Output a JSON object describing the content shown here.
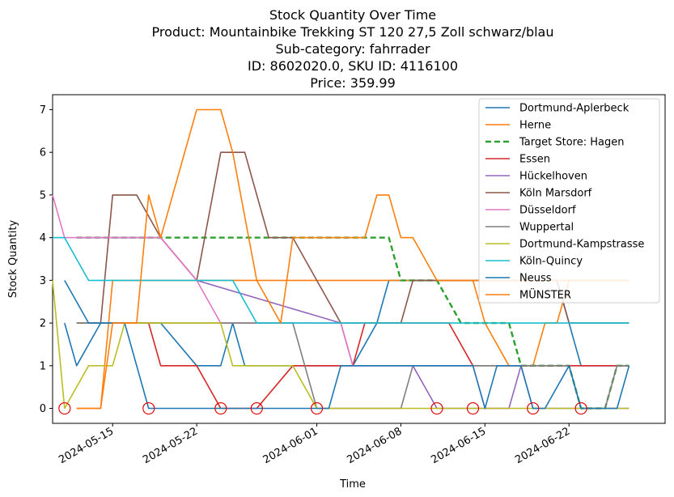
{
  "chart_data": {
    "type": "line",
    "title_lines": [
      "Stock Quantity Over Time",
      "Product: Mountainbike Trekking ST 120 27,5 Zoll schwarz/blau",
      "Sub-category: fahrrader",
      "ID: 8602020.0, SKU ID: 4116100",
      "Price: 359.99"
    ],
    "xlabel": "Time",
    "ylabel": "Stock Quantity",
    "xlim": [
      "2024-05-10",
      "2024-06-30"
    ],
    "ylim": [
      -0.35,
      7.35
    ],
    "x_ticks": [
      "2024-05-15",
      "2024-05-22",
      "2024-06-01",
      "2024-06-08",
      "2024-06-15",
      "2024-06-22"
    ],
    "y_ticks": [
      0,
      1,
      2,
      3,
      4,
      5,
      6,
      7
    ],
    "grid": false,
    "legend_position": "top-right",
    "series": [
      {
        "name": "Dortmund-Aplerbeck",
        "color": "#1f77b4",
        "dashed": false,
        "points": [
          [
            "2024-05-11",
            2
          ],
          [
            "2024-05-12",
            1
          ],
          [
            "2024-05-14",
            2
          ],
          [
            "2024-05-17",
            2
          ],
          [
            "2024-05-19",
            2
          ],
          [
            "2024-05-22",
            1
          ],
          [
            "2024-05-24",
            1
          ],
          [
            "2024-05-25",
            2
          ],
          [
            "2024-05-26",
            1
          ],
          [
            "2024-06-01",
            1
          ],
          [
            "2024-06-04",
            1
          ],
          [
            "2024-06-06",
            2
          ],
          [
            "2024-06-07",
            3
          ],
          [
            "2024-06-10",
            3
          ],
          [
            "2024-06-11",
            3
          ],
          [
            "2024-06-15",
            3
          ],
          [
            "2024-06-17",
            3
          ],
          [
            "2024-06-20",
            3
          ],
          [
            "2024-06-21",
            3
          ],
          [
            "2024-06-22",
            2
          ],
          [
            "2024-06-23",
            1
          ],
          [
            "2024-06-27",
            1
          ]
        ]
      },
      {
        "name": "Herne",
        "color": "#ff7f0e",
        "dashed": false,
        "points": [
          [
            "2024-05-12",
            0
          ],
          [
            "2024-05-14",
            0
          ],
          [
            "2024-05-15",
            3
          ],
          [
            "2024-05-22",
            3
          ],
          [
            "2024-06-01",
            3
          ],
          [
            "2024-06-08",
            3
          ],
          [
            "2024-06-14",
            3
          ],
          [
            "2024-06-15",
            2
          ],
          [
            "2024-06-17",
            1
          ],
          [
            "2024-06-19",
            1
          ],
          [
            "2024-06-20",
            2
          ],
          [
            "2024-06-21",
            2
          ],
          [
            "2024-06-22",
            3
          ],
          [
            "2024-06-27",
            3
          ]
        ]
      },
      {
        "name": "Target Store: Hagen",
        "color": "#2ca02c",
        "dashed": true,
        "points": [
          [
            "2024-05-12",
            4
          ],
          [
            "2024-05-19",
            4
          ],
          [
            "2024-06-07",
            4
          ],
          [
            "2024-06-08",
            3
          ],
          [
            "2024-06-11",
            3
          ],
          [
            "2024-06-13",
            2
          ],
          [
            "2024-06-17",
            2
          ],
          [
            "2024-06-18",
            1
          ],
          [
            "2024-06-22",
            1
          ],
          [
            "2024-06-23",
            0
          ],
          [
            "2024-06-25",
            0
          ],
          [
            "2024-06-26",
            1
          ],
          [
            "2024-06-27",
            1
          ]
        ]
      },
      {
        "name": "Essen",
        "color": "#d62728",
        "dashed": false,
        "points": [
          [
            "2024-05-16",
            2
          ],
          [
            "2024-05-18",
            2
          ],
          [
            "2024-05-19",
            1
          ],
          [
            "2024-05-22",
            1
          ],
          [
            "2024-05-24",
            0
          ],
          [
            "2024-05-27",
            0
          ],
          [
            "2024-05-30",
            1
          ],
          [
            "2024-06-04",
            1
          ],
          [
            "2024-06-05",
            2
          ],
          [
            "2024-06-12",
            2
          ],
          [
            "2024-06-14",
            1
          ],
          [
            "2024-06-15",
            1
          ],
          [
            "2024-06-27",
            1
          ]
        ]
      },
      {
        "name": "Hückelhoven",
        "color": "#9467bd",
        "dashed": false,
        "points": [
          [
            "2024-05-12",
            4
          ],
          [
            "2024-05-19",
            4
          ],
          [
            "2024-05-22",
            3
          ],
          [
            "2024-06-03",
            2
          ],
          [
            "2024-06-04",
            1
          ],
          [
            "2024-06-08",
            1
          ],
          [
            "2024-06-09",
            1
          ],
          [
            "2024-06-11",
            0
          ],
          [
            "2024-06-14",
            0
          ],
          [
            "2024-06-17",
            0
          ],
          [
            "2024-06-18",
            1
          ],
          [
            "2024-06-19",
            0
          ],
          [
            "2024-06-27",
            0
          ]
        ]
      },
      {
        "name": "Köln Marsdorf",
        "color": "#8c564b",
        "dashed": false,
        "points": [
          [
            "2024-05-12",
            2
          ],
          [
            "2024-05-14",
            2
          ],
          [
            "2024-05-15",
            5
          ],
          [
            "2024-05-17",
            5
          ],
          [
            "2024-05-19",
            4
          ],
          [
            "2024-05-22",
            3
          ],
          [
            "2024-05-24",
            6
          ],
          [
            "2024-05-26",
            6
          ],
          [
            "2024-05-28",
            4
          ],
          [
            "2024-05-30",
            4
          ],
          [
            "2024-06-01",
            3
          ],
          [
            "2024-06-03",
            2
          ],
          [
            "2024-06-08",
            2
          ],
          [
            "2024-06-09",
            3
          ],
          [
            "2024-06-11",
            3
          ],
          [
            "2024-06-21",
            3
          ],
          [
            "2024-06-22",
            2
          ],
          [
            "2024-06-27",
            2
          ]
        ]
      },
      {
        "name": "Düsseldorf",
        "color": "#e377c2",
        "dashed": false,
        "points": [
          [
            "2024-05-10",
            5
          ],
          [
            "2024-05-11",
            4
          ],
          [
            "2024-05-19",
            4
          ],
          [
            "2024-05-22",
            3
          ],
          [
            "2024-05-24",
            2
          ],
          [
            "2024-06-03",
            2
          ],
          [
            "2024-06-04",
            1
          ],
          [
            "2024-06-08",
            1
          ],
          [
            "2024-06-12",
            1
          ],
          [
            "2024-06-14",
            1
          ],
          [
            "2024-06-15",
            0
          ],
          [
            "2024-06-17",
            0
          ]
        ]
      },
      {
        "name": "Wuppertal",
        "color": "#7f7f7f",
        "dashed": false,
        "points": [
          [
            "2024-05-12",
            2
          ],
          [
            "2024-05-24",
            2
          ],
          [
            "2024-05-27",
            2
          ],
          [
            "2024-05-30",
            2
          ],
          [
            "2024-06-01",
            0
          ],
          [
            "2024-06-04",
            0
          ],
          [
            "2024-06-08",
            0
          ],
          [
            "2024-06-09",
            1
          ],
          [
            "2024-06-18",
            1
          ],
          [
            "2024-06-20",
            1
          ],
          [
            "2024-06-22",
            1
          ],
          [
            "2024-06-23",
            0
          ],
          [
            "2024-06-25",
            0
          ],
          [
            "2024-06-26",
            1
          ],
          [
            "2024-06-27",
            1
          ]
        ]
      },
      {
        "name": "Dortmund-Kampstrasse",
        "color": "#bcbd22",
        "dashed": false,
        "points": [
          [
            "2024-05-10",
            3
          ],
          [
            "2024-05-11",
            0
          ],
          [
            "2024-05-13",
            1
          ],
          [
            "2024-05-15",
            1
          ],
          [
            "2024-05-16",
            2
          ],
          [
            "2024-05-24",
            2
          ],
          [
            "2024-05-25",
            1
          ],
          [
            "2024-05-27",
            1
          ],
          [
            "2024-05-30",
            1
          ],
          [
            "2024-06-01",
            0
          ],
          [
            "2024-06-08",
            0
          ],
          [
            "2024-06-27",
            0
          ]
        ]
      },
      {
        "name": "Köln-Quincy",
        "color": "#17becf",
        "dashed": false,
        "points": [
          [
            "2024-05-10",
            4
          ],
          [
            "2024-05-11",
            4
          ],
          [
            "2024-05-13",
            3
          ],
          [
            "2024-05-14",
            3
          ],
          [
            "2024-05-15",
            3
          ],
          [
            "2024-05-24",
            3
          ],
          [
            "2024-05-25",
            3
          ],
          [
            "2024-05-27",
            2
          ],
          [
            "2024-06-01",
            2
          ],
          [
            "2024-06-27",
            2
          ]
        ]
      },
      {
        "name": "Neuss",
        "color": "#1f77b4",
        "dashed": false,
        "points": [
          [
            "2024-05-11",
            3
          ],
          [
            "2024-05-13",
            2
          ],
          [
            "2024-05-16",
            2
          ],
          [
            "2024-05-18",
            0
          ],
          [
            "2024-05-23",
            0
          ],
          [
            "2024-05-27",
            0
          ],
          [
            "2024-06-01",
            0
          ],
          [
            "2024-06-02",
            0
          ],
          [
            "2024-06-03",
            1
          ],
          [
            "2024-06-09",
            1
          ],
          [
            "2024-06-14",
            1
          ],
          [
            "2024-06-15",
            0
          ],
          [
            "2024-06-16",
            1
          ],
          [
            "2024-06-18",
            1
          ],
          [
            "2024-06-19",
            0
          ],
          [
            "2024-06-20",
            0
          ],
          [
            "2024-06-22",
            1
          ],
          [
            "2024-06-23",
            0
          ],
          [
            "2024-06-26",
            0
          ],
          [
            "2024-06-27",
            1
          ]
        ]
      },
      {
        "name": "MÜNSTER",
        "color": "#ff7f0e",
        "dashed": false,
        "points": [
          [
            "2024-05-12",
            0
          ],
          [
            "2024-05-14",
            0
          ],
          [
            "2024-05-15",
            2
          ],
          [
            "2024-05-17",
            2
          ],
          [
            "2024-05-18",
            5
          ],
          [
            "2024-05-19",
            4
          ],
          [
            "2024-05-22",
            7
          ],
          [
            "2024-05-24",
            7
          ],
          [
            "2024-05-25",
            6
          ],
          [
            "2024-05-27",
            3
          ],
          [
            "2024-05-29",
            2
          ],
          [
            "2024-05-30",
            4
          ],
          [
            "2024-06-05",
            4
          ],
          [
            "2024-06-06",
            5
          ],
          [
            "2024-06-07",
            5
          ],
          [
            "2024-06-08",
            4
          ],
          [
            "2024-06-09",
            4
          ],
          [
            "2024-06-11",
            3
          ],
          [
            "2024-06-14",
            3
          ],
          [
            "2024-06-27",
            3
          ]
        ]
      }
    ],
    "stockout_markers": {
      "color": "#e00000",
      "points": [
        [
          "2024-05-11",
          0
        ],
        [
          "2024-05-18",
          0
        ],
        [
          "2024-05-24",
          0
        ],
        [
          "2024-05-27",
          0
        ],
        [
          "2024-06-01",
          0
        ],
        [
          "2024-06-11",
          0
        ],
        [
          "2024-06-14",
          0
        ],
        [
          "2024-06-19",
          0
        ],
        [
          "2024-06-23",
          0
        ]
      ]
    }
  }
}
